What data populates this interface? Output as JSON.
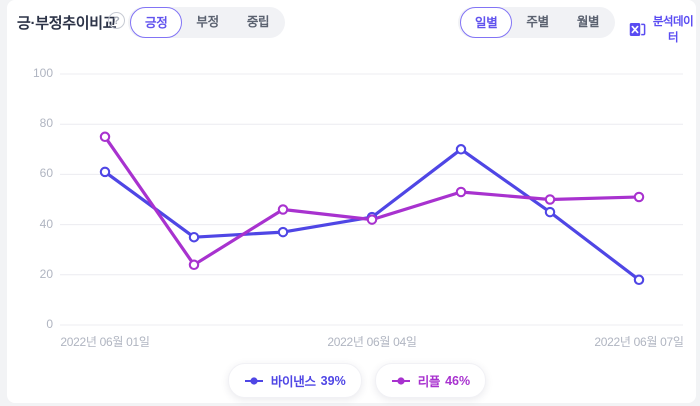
{
  "header": {
    "title": "긍·부정추이비교",
    "help_icon": "?",
    "sentiment_tabs": [
      {
        "label": "긍정",
        "selected": true
      },
      {
        "label": "부정",
        "selected": false
      },
      {
        "label": "중립",
        "selected": false
      }
    ],
    "period_tabs": [
      {
        "label": "일별",
        "selected": true
      },
      {
        "label": "주별",
        "selected": false
      },
      {
        "label": "월별",
        "selected": false
      }
    ],
    "export_label": "분석데이터"
  },
  "chart_data": {
    "type": "line",
    "title": "긍·부정추이비교 (긍정, 일별)",
    "x_tick_labels": [
      "2022년 06월 01일",
      "2022년 06월 04일",
      "2022년 06월 07일"
    ],
    "x_points": 7,
    "ylim": [
      0,
      100
    ],
    "yticks": [
      0,
      20,
      40,
      60,
      80,
      100
    ],
    "ytick_labels_top_to_bottom": [
      "100",
      "80",
      "60",
      "40",
      "20",
      "0"
    ],
    "grid": true,
    "legend_position": "bottom",
    "series": [
      {
        "name": "바이낸스",
        "color": "#4f46e5",
        "values": [
          61,
          35,
          37,
          43,
          70,
          45,
          18
        ]
      },
      {
        "name": "리플",
        "color": "#a832cf",
        "values": [
          75,
          24,
          46,
          42,
          53,
          50,
          51
        ]
      }
    ]
  },
  "legend": [
    {
      "name": "바이낸스",
      "value": "39%",
      "color": "#4f46e5"
    },
    {
      "name": "리플",
      "value": "46%",
      "color": "#a832cf"
    }
  ],
  "colors": {
    "accent": "#6153ee",
    "export_purple": "#5a4cf2",
    "grid_line": "#ececf0",
    "axis_text": "#b0b5c1",
    "tab_inactive_text": "#5b6270",
    "tab_container_bg": "#f1f2f5"
  }
}
